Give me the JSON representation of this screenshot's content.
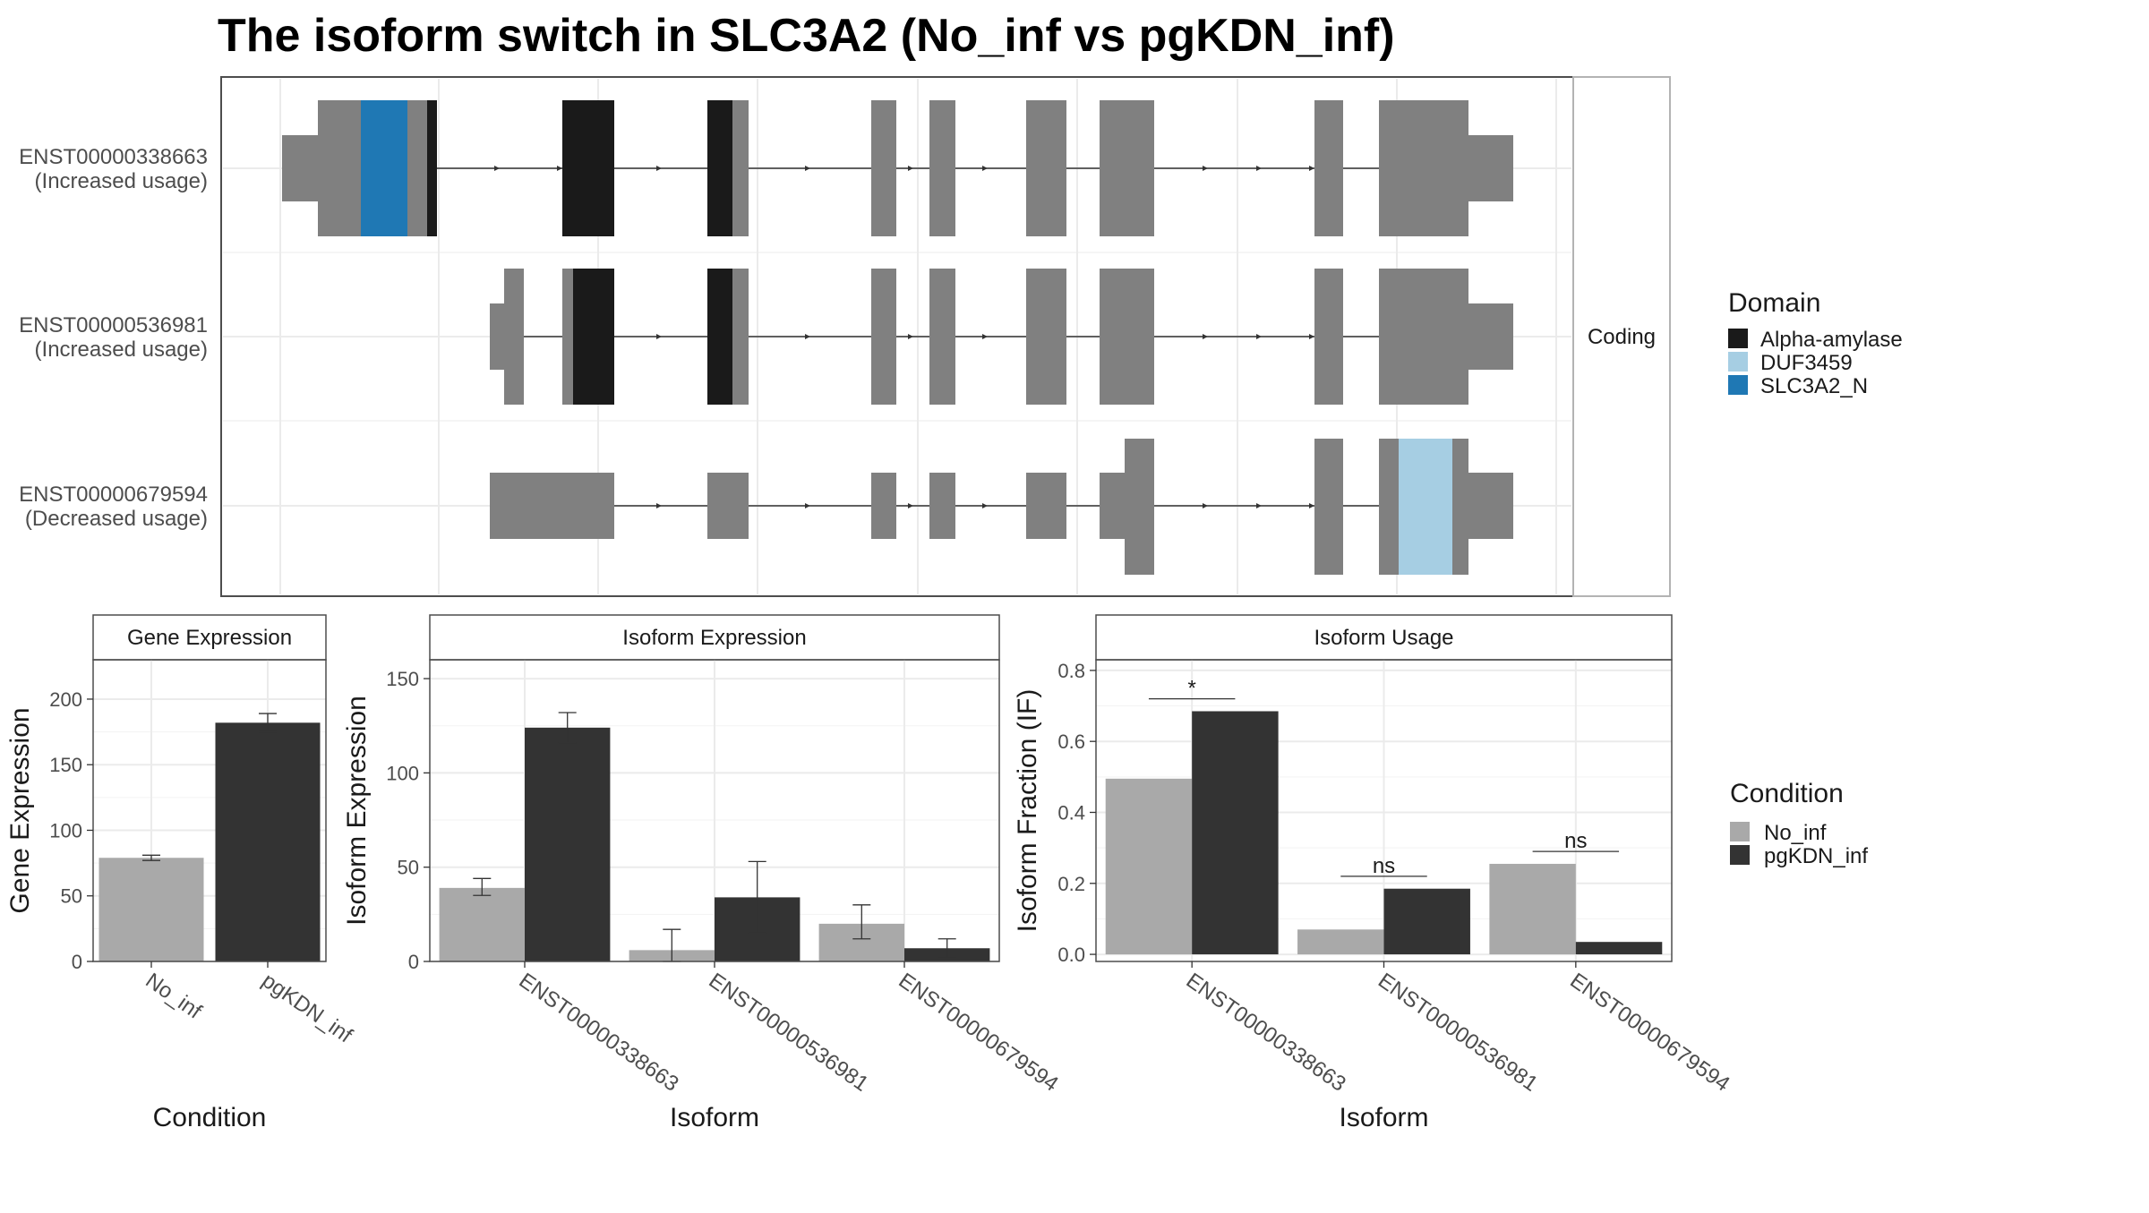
{
  "title": "The isoform switch in SLC3A2 (No_inf vs pgKDN_inf)",
  "isoform_structure": {
    "facet_label": "Coding",
    "isoforms": [
      {
        "id": "ENST00000338663",
        "usage": "(Increased usage)"
      },
      {
        "id": "ENST00000536981",
        "usage": "(Increased usage)"
      },
      {
        "id": "ENST00000679594",
        "usage": "(Decreased usage)"
      }
    ]
  },
  "legends": {
    "domain": {
      "title": "Domain",
      "entries": [
        {
          "label": "Alpha-amylase",
          "color": "#1a1a1a"
        },
        {
          "label": "DUF3459",
          "color": "#a6cee3"
        },
        {
          "label": "SLC3A2_N",
          "color": "#1f78b4"
        }
      ]
    },
    "condition": {
      "title": "Condition",
      "entries": [
        {
          "label": "No_inf",
          "color": "#a9a9a9"
        },
        {
          "label": "pgKDN_inf",
          "color": "#333333"
        }
      ]
    }
  },
  "chart_data": [
    {
      "type": "bar",
      "title": "Gene Expression",
      "xlabel": "Condition",
      "ylabel": "Gene Expression",
      "ylim": [
        0,
        230
      ],
      "yticks": [
        0,
        50,
        100,
        150,
        200
      ],
      "categories": [
        "No_inf",
        "pgKDN_inf"
      ],
      "values": [
        79,
        182
      ],
      "errors": [
        [
          77,
          81
        ],
        [
          175,
          189
        ]
      ],
      "colors": [
        "#a9a9a9",
        "#333333"
      ]
    },
    {
      "type": "bar",
      "title": "Isoform Expression",
      "xlabel": "Isoform",
      "ylabel": "Isoform Expression",
      "ylim": [
        0,
        160
      ],
      "yticks": [
        0,
        50,
        100,
        150
      ],
      "categories": [
        "ENST00000338663",
        "ENST00000536981",
        "ENST00000679594"
      ],
      "series": [
        {
          "name": "No_inf",
          "values": [
            39,
            6,
            20
          ],
          "errors": [
            [
              35,
              44
            ],
            [
              0,
              17
            ],
            [
              12,
              30
            ]
          ]
        },
        {
          "name": "pgKDN_inf",
          "values": [
            124,
            34,
            7
          ],
          "errors": [
            [
              116,
              132
            ],
            [
              15,
              53
            ],
            [
              2,
              12
            ]
          ]
        }
      ]
    },
    {
      "type": "bar",
      "title": "Isoform Usage",
      "xlabel": "Isoform",
      "ylabel": "Isoform Fraction (IF)",
      "ylim": [
        -0.02,
        0.83
      ],
      "yticks": [
        0.0,
        0.2,
        0.4,
        0.6,
        0.8
      ],
      "ytick_labels": [
        "0.0",
        "0.2",
        "0.4",
        "0.6",
        "0.8"
      ],
      "categories": [
        "ENST00000338663",
        "ENST00000536981",
        "ENST00000679594"
      ],
      "series": [
        {
          "name": "No_inf",
          "values": [
            0.495,
            0.07,
            0.255
          ]
        },
        {
          "name": "pgKDN_inf",
          "values": [
            0.685,
            0.185,
            0.035
          ]
        }
      ],
      "significance": [
        {
          "label": "*",
          "y": 0.72
        },
        {
          "label": "ns",
          "y": 0.22
        },
        {
          "label": "ns",
          "y": 0.29
        }
      ]
    }
  ]
}
